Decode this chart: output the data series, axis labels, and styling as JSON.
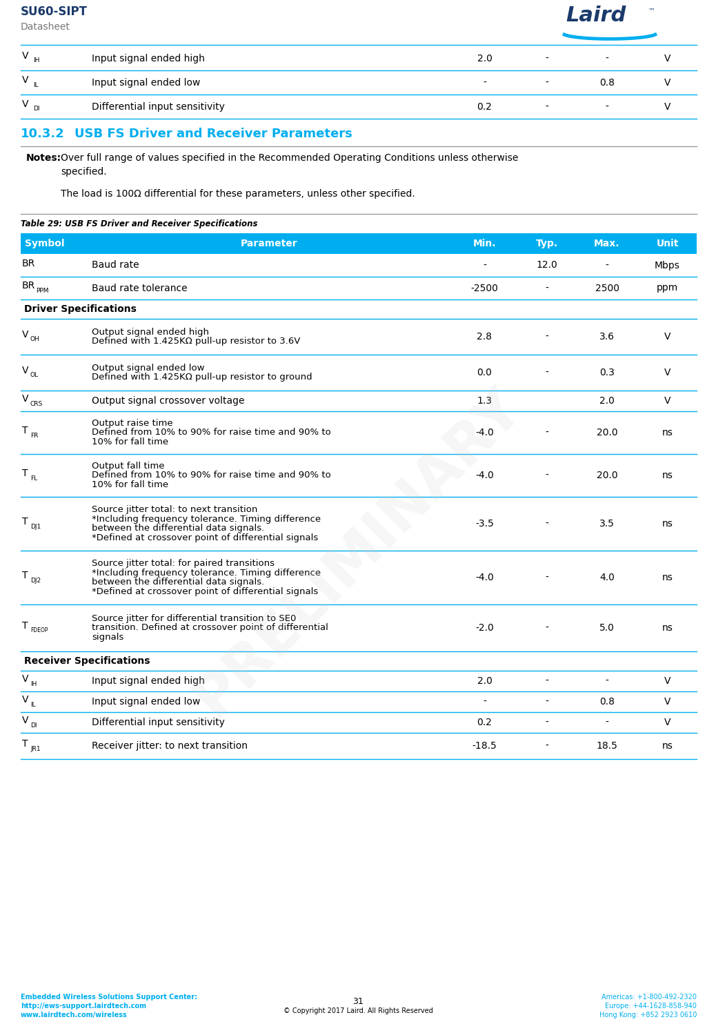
{
  "page_title": "SU60-SIPT",
  "page_subtitle": "Datasheet",
  "section_number": "10.3.2",
  "section_title": "USB FS Driver and Receiver Parameters",
  "table_caption": "Table 29: USB FS Driver and Receiver Specifications",
  "header": [
    "Symbol",
    "Parameter",
    "Min.",
    "Typ.",
    "Max.",
    "Unit"
  ],
  "colors": {
    "cyan": "#00AEEF",
    "dark_blue": "#1B3A6B",
    "black": "#000000",
    "white": "#FFFFFF",
    "gray_line": "#888888",
    "light_gray": "#CCCCCC"
  },
  "prev_rows": [
    {
      "sym_main": "V",
      "sym_sub": "IH",
      "param": "Input signal ended high",
      "min": "2.0",
      "typ": "-",
      "max": "-",
      "unit": "V"
    },
    {
      "sym_main": "V",
      "sym_sub": "IL",
      "param": "Input signal ended low",
      "min": "-",
      "typ": "-",
      "max": "0.8",
      "unit": "V"
    },
    {
      "sym_main": "V",
      "sym_sub": "DI",
      "param": "Differential input sensitivity",
      "min": "0.2",
      "typ": "-",
      "max": "-",
      "unit": "V"
    }
  ],
  "rows": [
    {
      "type": "data",
      "sym_main": "BR",
      "sym_sub": "",
      "param": "Baud rate",
      "min": "-",
      "typ": "12.0",
      "max": "-",
      "unit": "Mbps"
    },
    {
      "type": "data",
      "sym_main": "BR",
      "sym_sub": "PPM",
      "param": "Baud rate tolerance",
      "min": "-2500",
      "typ": "-",
      "max": "2500",
      "unit": "ppm"
    },
    {
      "type": "section",
      "label": "Driver Specifications"
    },
    {
      "type": "data",
      "sym_main": "V",
      "sym_sub": "OH",
      "param": "Output signal ended high\nDefined with 1.425KΩ pull-up resistor to 3.6V",
      "min": "2.8",
      "typ": "-",
      "max": "3.6",
      "unit": "V"
    },
    {
      "type": "data",
      "sym_main": "V",
      "sym_sub": "OL",
      "param": "Output signal ended low\nDefined with 1.425KΩ pull-up resistor to ground",
      "min": "0.0",
      "typ": "-",
      "max": "0.3",
      "unit": "V"
    },
    {
      "type": "data",
      "sym_main": "V",
      "sym_sub": "CRS",
      "param": "Output signal crossover voltage",
      "min": "1.3",
      "typ": "",
      "max": "2.0",
      "unit": "V"
    },
    {
      "type": "data",
      "sym_main": "T",
      "sym_sub": "FR",
      "param": "Output raise time\nDefined from 10% to 90% for raise time and 90% to\n10% for fall time",
      "min": "-4.0",
      "typ": "-",
      "max": "20.0",
      "unit": "ns"
    },
    {
      "type": "data",
      "sym_main": "T",
      "sym_sub": "FL",
      "param": "Output fall time\nDefined from 10% to 90% for raise time and 90% to\n10% for fall time",
      "min": "-4.0",
      "typ": "-",
      "max": "20.0",
      "unit": "ns"
    },
    {
      "type": "data",
      "sym_main": "T",
      "sym_sub": "DJ1",
      "param": "Source jitter total: to next transition\n*Including frequency tolerance. Timing difference\nbetween the differential data signals.\n*Defined at crossover point of differential signals",
      "min": "-3.5",
      "typ": "-",
      "max": "3.5",
      "unit": "ns"
    },
    {
      "type": "data",
      "sym_main": "T",
      "sym_sub": "DJ2",
      "param": "Source jitter total: for paired transitions\n*Including frequency tolerance. Timing difference\nbetween the differential data signals.\n*Defined at crossover point of differential signals",
      "min": "-4.0",
      "typ": "-",
      "max": "4.0",
      "unit": "ns"
    },
    {
      "type": "data",
      "sym_main": "T",
      "sym_sub": "FDEOP",
      "param": "Source jitter for differential transition to SE0\ntransition. Defined at crossover point of differential\nsignals",
      "min": "-2.0",
      "typ": "-",
      "max": "5.0",
      "unit": "ns"
    },
    {
      "type": "section",
      "label": "Receiver Specifications"
    },
    {
      "type": "data",
      "sym_main": "V",
      "sym_sub": "IH",
      "param": "Input signal ended high",
      "min": "2.0",
      "typ": "-",
      "max": "-",
      "unit": "V"
    },
    {
      "type": "data",
      "sym_main": "V",
      "sym_sub": "IL",
      "param": "Input signal ended low",
      "min": "-",
      "typ": "-",
      "max": "0.8",
      "unit": "V"
    },
    {
      "type": "data",
      "sym_main": "V",
      "sym_sub": "DI",
      "param": "Differential input sensitivity",
      "min": "0.2",
      "typ": "-",
      "max": "-",
      "unit": "V"
    },
    {
      "type": "data",
      "sym_main": "T",
      "sym_sub": "JR1",
      "param": "Receiver jitter: to next transition",
      "min": "-18.5",
      "typ": "-",
      "max": "18.5",
      "unit": "ns"
    }
  ],
  "footer": {
    "left_line1": "Embedded Wireless Solutions Support Center:",
    "left_line2": "http://ews-support.lairdtech.com",
    "left_line3": "www.lairdtech.com/wireless",
    "center_line1": "31",
    "center_line2": "© Copyright 2017 Laird. All Rights Reserved",
    "right_line1": "Americas: +1-800-492-2320",
    "right_line2": "Europe: +44-1628-858-940",
    "right_line3": "Hong Kong: +852 2923 0610"
  }
}
